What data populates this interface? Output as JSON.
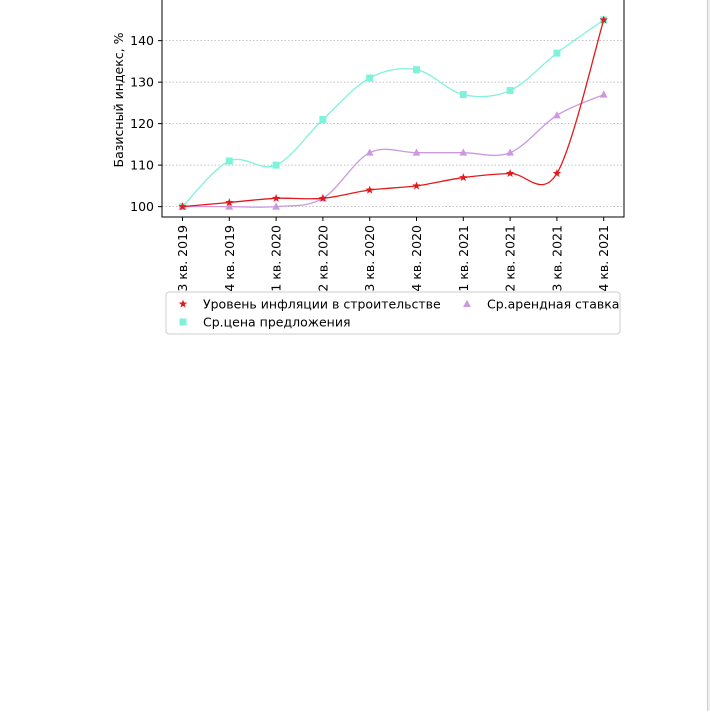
{
  "chart_data": {
    "type": "line",
    "categories": [
      "3 кв. 2019",
      "4 кв. 2019",
      "1 кв. 2020",
      "2 кв. 2020",
      "3 кв. 2020",
      "4 кв. 2020",
      "1 кв. 2021",
      "2 кв. 2021",
      "3 кв. 2021",
      "4 кв. 2021"
    ],
    "ylabel": "Базисный индекс, %",
    "yticks": [
      100,
      110,
      120,
      130,
      140
    ],
    "ylim": [
      97.5,
      151
    ],
    "grid": "horizontal, dotted",
    "legend_position": "below chart",
    "series": [
      {
        "name": "Уровень инфляции в строительстве",
        "color": "#e31a1c",
        "marker": "star",
        "values": [
          100,
          101,
          102,
          102,
          104,
          105,
          107,
          108,
          108,
          145
        ]
      },
      {
        "name": "Ср.арендная ставка",
        "color": "#cc99e0",
        "marker": "triangle",
        "values": [
          100,
          100,
          100,
          102,
          113,
          113,
          113,
          113,
          122,
          127
        ]
      },
      {
        "name": "Ср.цена предложения",
        "color": "#7ff2dc",
        "marker": "square",
        "values": [
          100,
          111,
          110,
          121,
          131,
          133,
          127,
          128,
          137,
          145
        ]
      }
    ]
  }
}
